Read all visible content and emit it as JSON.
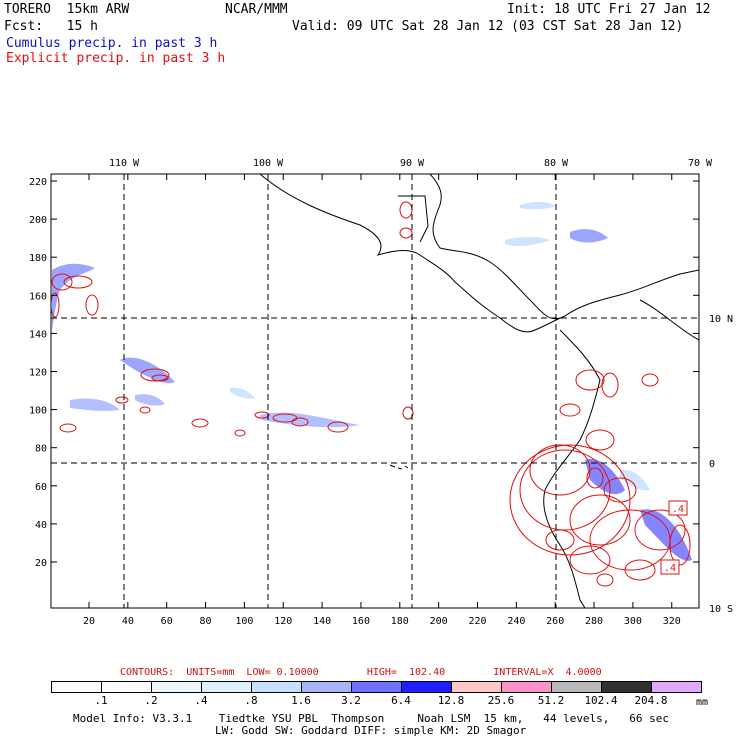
{
  "header": {
    "model": "TORERO  15km ARW",
    "org": "NCAR/MMM",
    "init": "Init: 18 UTC Fri 27 Jan 12",
    "fcst": "Fcst:   15 h",
    "valid": "Valid: 09 UTC Sat 28 Jan 12 (03 CST Sat 28 Jan 12)",
    "cumulus": "Cumulus precip. in past 3 h",
    "explicit": "Explicit precip. in past 3 h"
  },
  "map": {
    "top_lon_labels": [
      "110 W",
      "100 W",
      "90 W",
      "80 W",
      "70 W"
    ],
    "right_lat_labels": [
      "10 N",
      "0",
      "10 S"
    ],
    "y_ticks": [
      "220",
      "200",
      "180",
      "160",
      "140",
      "120",
      "100",
      "80",
      "60",
      "40",
      "20"
    ],
    "x_ticks": [
      "20",
      "40",
      "60",
      "80",
      "100",
      "120",
      "140",
      "160",
      "180",
      "200",
      "220",
      "240",
      "260",
      "280",
      "300",
      "320"
    ],
    "box_labels": [
      ".4",
      ".4"
    ]
  },
  "contours": {
    "line": "CONTOURS:  UNITS=mm  LOW= 0.10000        HIGH=  102.40        INTERVAL=X  4.0000"
  },
  "colorbar": {
    "labels": [
      ".1",
      ".2",
      ".4",
      ".8",
      "1.6",
      "3.2",
      "6.4",
      "12.8",
      "25.6",
      "51.2",
      "102.4",
      "204.8"
    ],
    "unit": "mm",
    "colors": [
      "#ffffff",
      "#ffffff",
      "#eef6ff",
      "#dff0ff",
      "#c6e0ff",
      "#a6b4ff",
      "#7070ff",
      "#2020ff",
      "#ffc8c8",
      "#ff90c8",
      "#b8b8b8",
      "#303030",
      "#e0a8ff"
    ]
  },
  "footer": {
    "line1": "Model Info: V3.3.1    Tiedtke YSU PBL  Thompson     Noah LSM  15 km,   44 levels,   66 sec",
    "line2": "LW: Godd SW: Goddard DIFF: simple KM: 2D Smagor"
  }
}
